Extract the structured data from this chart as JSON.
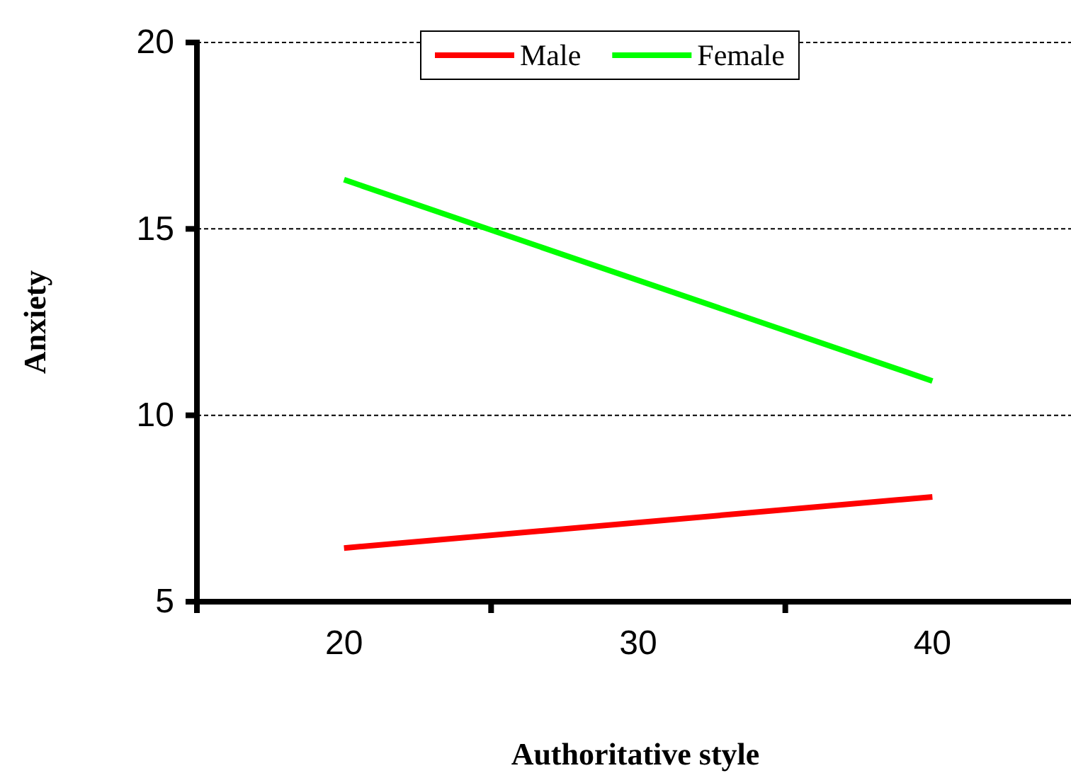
{
  "chart_data": {
    "type": "line",
    "xlabel": "Authoritative style",
    "ylabel": "Anxiety",
    "x": [
      20,
      40
    ],
    "series": [
      {
        "name": "Male",
        "color": "#ff0000",
        "values": [
          6.44,
          7.81
        ]
      },
      {
        "name": "Female",
        "color": "#00ff00",
        "values": [
          16.32,
          10.92
        ]
      }
    ],
    "xlim": [
      15,
      45
    ],
    "xticks": [
      20,
      {
        "value": 25,
        "label": null
      },
      30,
      {
        "value": 35,
        "label": null
      },
      40
    ],
    "ylim": [
      5,
      20
    ],
    "yticks": [
      5,
      10,
      15,
      20
    ],
    "grid": "y",
    "legend": "top",
    "marker": "none",
    "line_style": "solid"
  }
}
